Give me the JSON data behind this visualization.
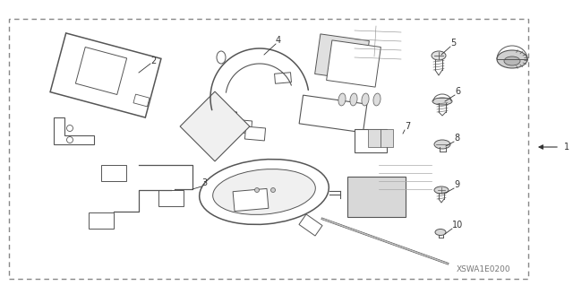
{
  "bg_color": "#ffffff",
  "border_color": "#888888",
  "fig_width": 6.4,
  "fig_height": 3.19,
  "dpi": 100,
  "diagram_code": "XSWA1E0200",
  "line_color": "#555555",
  "gray_fill": "#cccccc",
  "light_gray": "#e8e8e8"
}
